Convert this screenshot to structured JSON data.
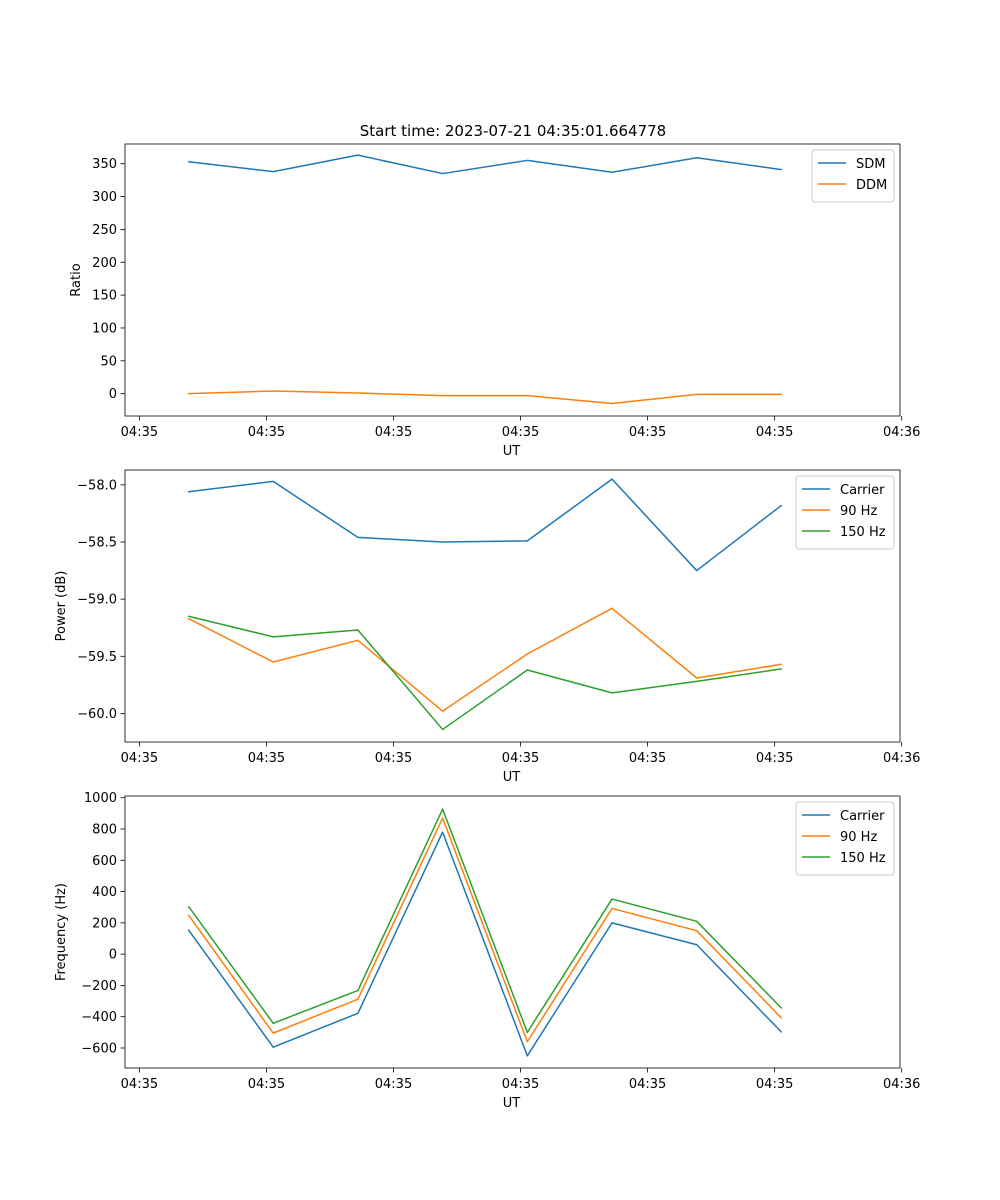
{
  "figure_title": "Start time: 2023-07-21 04:35:01.664778",
  "colors": {
    "blue": "#1f77b4",
    "orange": "#ff7f0e",
    "green": "#2ca02c"
  },
  "chart_data": [
    {
      "type": "line",
      "title": "Start time: 2023-07-21 04:35:01.664778",
      "xlabel": "UT",
      "ylabel": "Ratio",
      "x": [
        1,
        2,
        3,
        4,
        5,
        6,
        7,
        8
      ],
      "xlim": [
        0.25,
        9.4
      ],
      "ylim": [
        -34,
        380
      ],
      "xticks": [
        0.42,
        1.92,
        3.42,
        4.92,
        6.42,
        7.92,
        9.42
      ],
      "xtick_labels": [
        "04:35",
        "04:35",
        "04:35",
        "04:35",
        "04:35",
        "04:35",
        "04:36"
      ],
      "yticks": [
        0,
        50,
        100,
        150,
        200,
        250,
        300,
        350
      ],
      "ytick_labels": [
        "0",
        "50",
        "100",
        "150",
        "200",
        "250",
        "300",
        "350"
      ],
      "legend_position": "top-right",
      "series": [
        {
          "name": "SDM",
          "color": "#1f77b4",
          "values": [
            353,
            338,
            363,
            335,
            355,
            337,
            359,
            341
          ]
        },
        {
          "name": "DDM",
          "color": "#ff7f0e",
          "values": [
            0,
            4,
            1,
            -3,
            -3,
            -15,
            -1,
            -1
          ]
        }
      ]
    },
    {
      "type": "line",
      "title": "",
      "xlabel": "UT",
      "ylabel": "Power (dB)",
      "x": [
        1,
        2,
        3,
        4,
        5,
        6,
        7,
        8
      ],
      "xlim": [
        0.25,
        9.4
      ],
      "ylim": [
        -60.25,
        -57.87
      ],
      "xticks": [
        0.42,
        1.92,
        3.42,
        4.92,
        6.42,
        7.92,
        9.42
      ],
      "xtick_labels": [
        "04:35",
        "04:35",
        "04:35",
        "04:35",
        "04:35",
        "04:35",
        "04:36"
      ],
      "yticks": [
        -60.0,
        -59.5,
        -59.0,
        -58.5,
        -58.0
      ],
      "ytick_labels": [
        "−60.0",
        "−59.5",
        "−59.0",
        "−58.5",
        "−58.0"
      ],
      "legend_position": "top-right",
      "series": [
        {
          "name": "Carrier",
          "color": "#1f77b4",
          "values": [
            -58.06,
            -57.97,
            -58.46,
            -58.5,
            -58.49,
            -57.95,
            -58.75,
            -58.18
          ]
        },
        {
          "name": "90 Hz",
          "color": "#ff7f0e",
          "values": [
            -59.17,
            -59.55,
            -59.36,
            -59.98,
            -59.48,
            -59.08,
            -59.69,
            -59.57
          ]
        },
        {
          "name": "150 Hz",
          "color": "#2ca02c",
          "values": [
            -59.15,
            -59.33,
            -59.27,
            -60.14,
            -59.62,
            -59.82,
            -59.72,
            -59.61
          ]
        }
      ]
    },
    {
      "type": "line",
      "title": "",
      "xlabel": "UT",
      "ylabel": "Frequency (Hz)",
      "x": [
        1,
        2,
        3,
        4,
        5,
        6,
        7,
        8
      ],
      "xlim": [
        0.25,
        9.4
      ],
      "ylim": [
        -728,
        1011
      ],
      "xticks": [
        0.42,
        1.92,
        3.42,
        4.92,
        6.42,
        7.92,
        9.42
      ],
      "xtick_labels": [
        "04:35",
        "04:35",
        "04:35",
        "04:35",
        "04:35",
        "04:35",
        "04:36"
      ],
      "yticks": [
        -600,
        -400,
        -200,
        0,
        200,
        400,
        600,
        800,
        1000
      ],
      "ytick_labels": [
        "−600",
        "−400",
        "−200",
        "0",
        "200",
        "400",
        "600",
        "800",
        "1000"
      ],
      "legend_position": "top-right",
      "series": [
        {
          "name": "Carrier",
          "color": "#1f77b4",
          "values": [
            155,
            -595,
            -378,
            780,
            -650,
            200,
            60,
            -498
          ]
        },
        {
          "name": "90 Hz",
          "color": "#ff7f0e",
          "values": [
            250,
            -505,
            -288,
            870,
            -560,
            292,
            150,
            -408
          ]
        },
        {
          "name": "150 Hz",
          "color": "#2ca02c",
          "values": [
            305,
            -442,
            -232,
            927,
            -500,
            352,
            210,
            -345
          ]
        }
      ]
    }
  ]
}
